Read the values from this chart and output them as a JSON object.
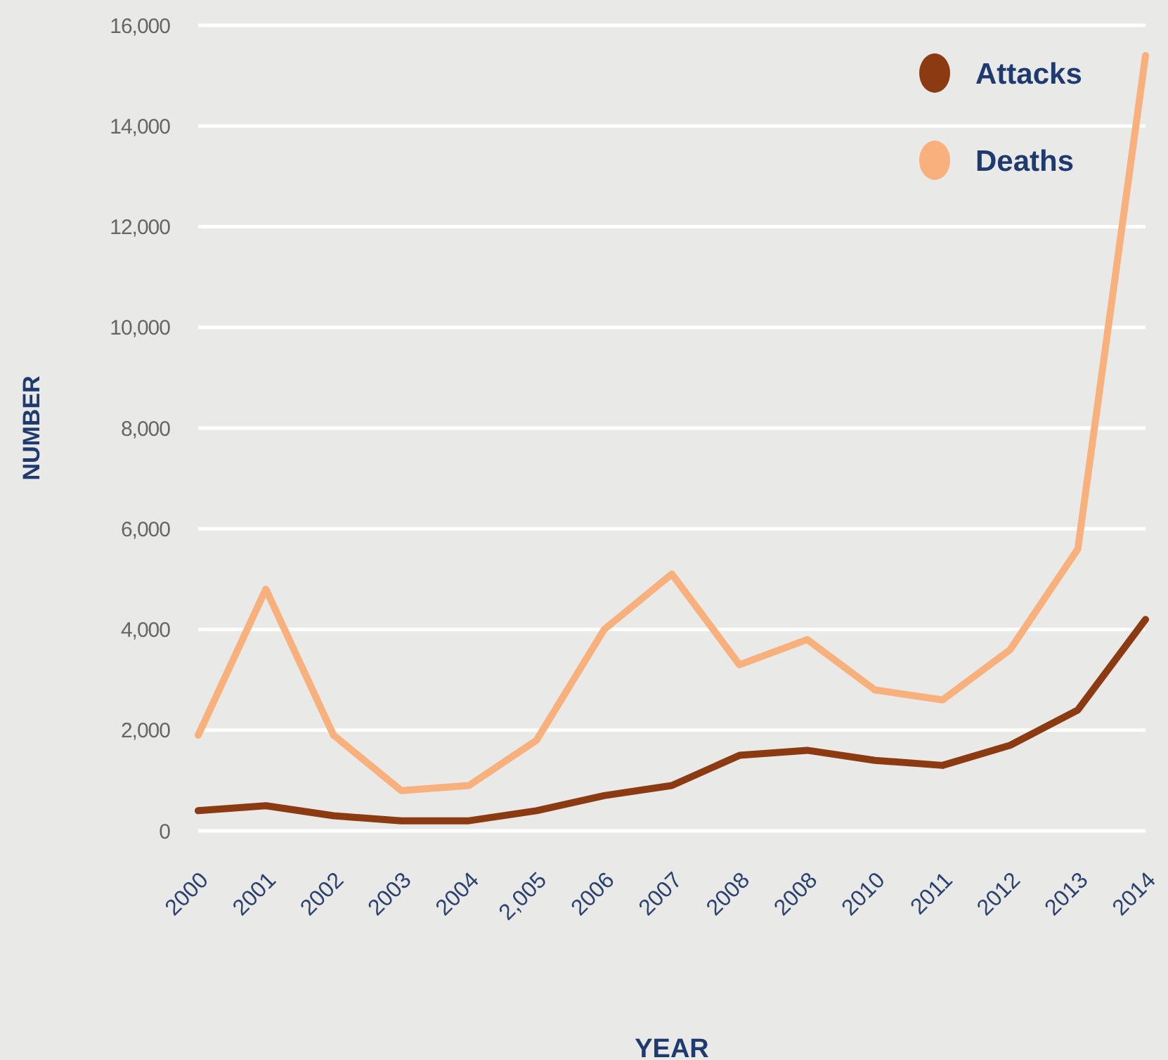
{
  "chart_data": {
    "type": "line",
    "xlabel": "YEAR",
    "ylabel": "NUMBER",
    "categories": [
      "2000",
      "2001",
      "2002",
      "2003",
      "2004",
      "2,005",
      "2006",
      "2007",
      "2008",
      "2008",
      "2010",
      "2011",
      "2012",
      "2013",
      "2014"
    ],
    "series": [
      {
        "name": "Attacks",
        "color": "#8b3a12",
        "values": [
          400,
          500,
          300,
          200,
          200,
          400,
          700,
          900,
          1500,
          1600,
          1400,
          1300,
          1700,
          2400,
          4200
        ]
      },
      {
        "name": "Deaths",
        "color": "#f8b07c",
        "values": [
          1900,
          4800,
          1900,
          800,
          900,
          1800,
          4000,
          5100,
          3300,
          3800,
          2800,
          2600,
          3600,
          5600,
          15400
        ]
      }
    ],
    "ylim": [
      0,
      16000
    ],
    "yticks": [
      {
        "value": 0,
        "label": "0"
      },
      {
        "value": 2000,
        "label": "2,000"
      },
      {
        "value": 4000,
        "label": "4,000"
      },
      {
        "value": 6000,
        "label": "6,000"
      },
      {
        "value": 8000,
        "label": "8,000"
      },
      {
        "value": 10000,
        "label": "10,000"
      },
      {
        "value": 12000,
        "label": "12,000"
      },
      {
        "value": 14000,
        "label": "14,000"
      },
      {
        "value": 16000,
        "label": "16,000"
      }
    ],
    "grid": "y",
    "legend": "top right",
    "marker": "none",
    "line_style": "solid"
  }
}
